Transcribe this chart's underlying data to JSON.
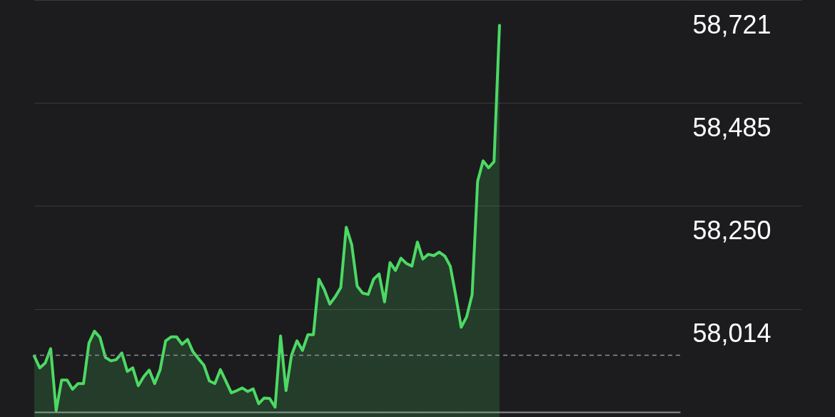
{
  "chart_data": {
    "type": "area",
    "categories": [
      null,
      null,
      null,
      null,
      null,
      null,
      null,
      null,
      null,
      null,
      null,
      null,
      null,
      null,
      null,
      null,
      null,
      null,
      null,
      null,
      null,
      null,
      null,
      null,
      null,
      null,
      null,
      null,
      null,
      null,
      null,
      null,
      null,
      null,
      null,
      null,
      null,
      null,
      null,
      null,
      null,
      null,
      null,
      null,
      null,
      null,
      null,
      null,
      null,
      null,
      null,
      null,
      null,
      null,
      null,
      null,
      null,
      null,
      null,
      null,
      null,
      null,
      null,
      null,
      null,
      null,
      null,
      null,
      null,
      null,
      null,
      null,
      null,
      null,
      null,
      null,
      null,
      null,
      null,
      null,
      null,
      null,
      null,
      null,
      null,
      null,
      null,
      null,
      null,
      null,
      null,
      null,
      null,
      null,
      null,
      null,
      null,
      null,
      null,
      null,
      null,
      null,
      null,
      null,
      null,
      null,
      null,
      null,
      null,
      null,
      null,
      null,
      null,
      null,
      null,
      null,
      null,
      null,
      null
    ],
    "series": [
      {
        "color": "#4cd964",
        "values": [
          57906,
          57879,
          57890,
          57923,
          57781,
          57851,
          57851,
          57830,
          57843,
          57843,
          57936,
          57963,
          57949,
          57903,
          57895,
          57898,
          57913,
          57871,
          57879,
          57838,
          57859,
          57874,
          57843,
          57875,
          57941,
          57950,
          57950,
          57933,
          57944,
          57916,
          57900,
          57885,
          57849,
          57843,
          57875,
          57849,
          57822,
          57827,
          57833,
          57825,
          57831,
          57797,
          57810,
          57809,
          57789,
          57952,
          57827,
          57908,
          57941,
          57919,
          57955,
          57955,
          58082,
          58058,
          58025,
          58042,
          58063,
          58201,
          58161,
          58066,
          58050,
          58047,
          58082,
          58094,
          58030,
          58120,
          58102,
          58130,
          58118,
          58112,
          58167,
          58128,
          58139,
          58136,
          58144,
          58135,
          58112,
          58045,
          57972,
          57996,
          58047,
          58306,
          58353,
          58337,
          58351,
          58663,
          null,
          null,
          null,
          null,
          null,
          null,
          null,
          null,
          null,
          null,
          null,
          null,
          null,
          null,
          null,
          null,
          null,
          null,
          null,
          null,
          null,
          null,
          null,
          null,
          null,
          null,
          null,
          null,
          null,
          null,
          null,
          null,
          null
        ]
      }
    ],
    "ylim": [
      57778,
      58721
    ],
    "yticks": [
      {
        "value": 58014,
        "label": "58,014"
      },
      {
        "value": 58250,
        "label": "58,250"
      },
      {
        "value": 58485,
        "label": "58,485"
      },
      {
        "value": 58721,
        "label": "58,721"
      }
    ],
    "grid": "y",
    "ref_lines": [
      {
        "axis": "y",
        "value": 57908,
        "color": "#8e8e93",
        "line_style": "dashed"
      }
    ]
  }
}
